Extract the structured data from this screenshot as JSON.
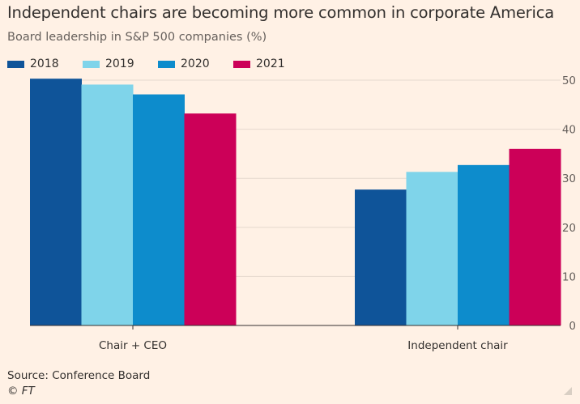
{
  "title": "Independent chairs are becoming more common in corporate America",
  "subtitle": "Board leadership in S&P 500 companies (%)",
  "source": "Source: Conference Board",
  "credit": "© FT",
  "chart_data": {
    "type": "bar",
    "title": "Independent chairs are becoming more common in corporate America",
    "subtitle": "Board leadership in S&P 500 companies (%)",
    "categories": [
      "Chair + CEO",
      "Independent chair"
    ],
    "series": [
      {
        "name": "2018",
        "color": "#0f5499",
        "values": [
          50.3,
          27.7
        ]
      },
      {
        "name": "2019",
        "color": "#7fd4ea",
        "values": [
          49.1,
          31.3
        ]
      },
      {
        "name": "2020",
        "color": "#0d8ccc",
        "values": [
          47.1,
          32.7
        ]
      },
      {
        "name": "2021",
        "color": "#cc0058",
        "values": [
          43.2,
          36.0
        ]
      }
    ],
    "ylim": [
      0,
      50
    ],
    "yticks": [
      "0",
      "10",
      "20",
      "30",
      "40",
      "50"
    ],
    "grid": true,
    "legend_position": "top-left",
    "axis_position": "right"
  }
}
